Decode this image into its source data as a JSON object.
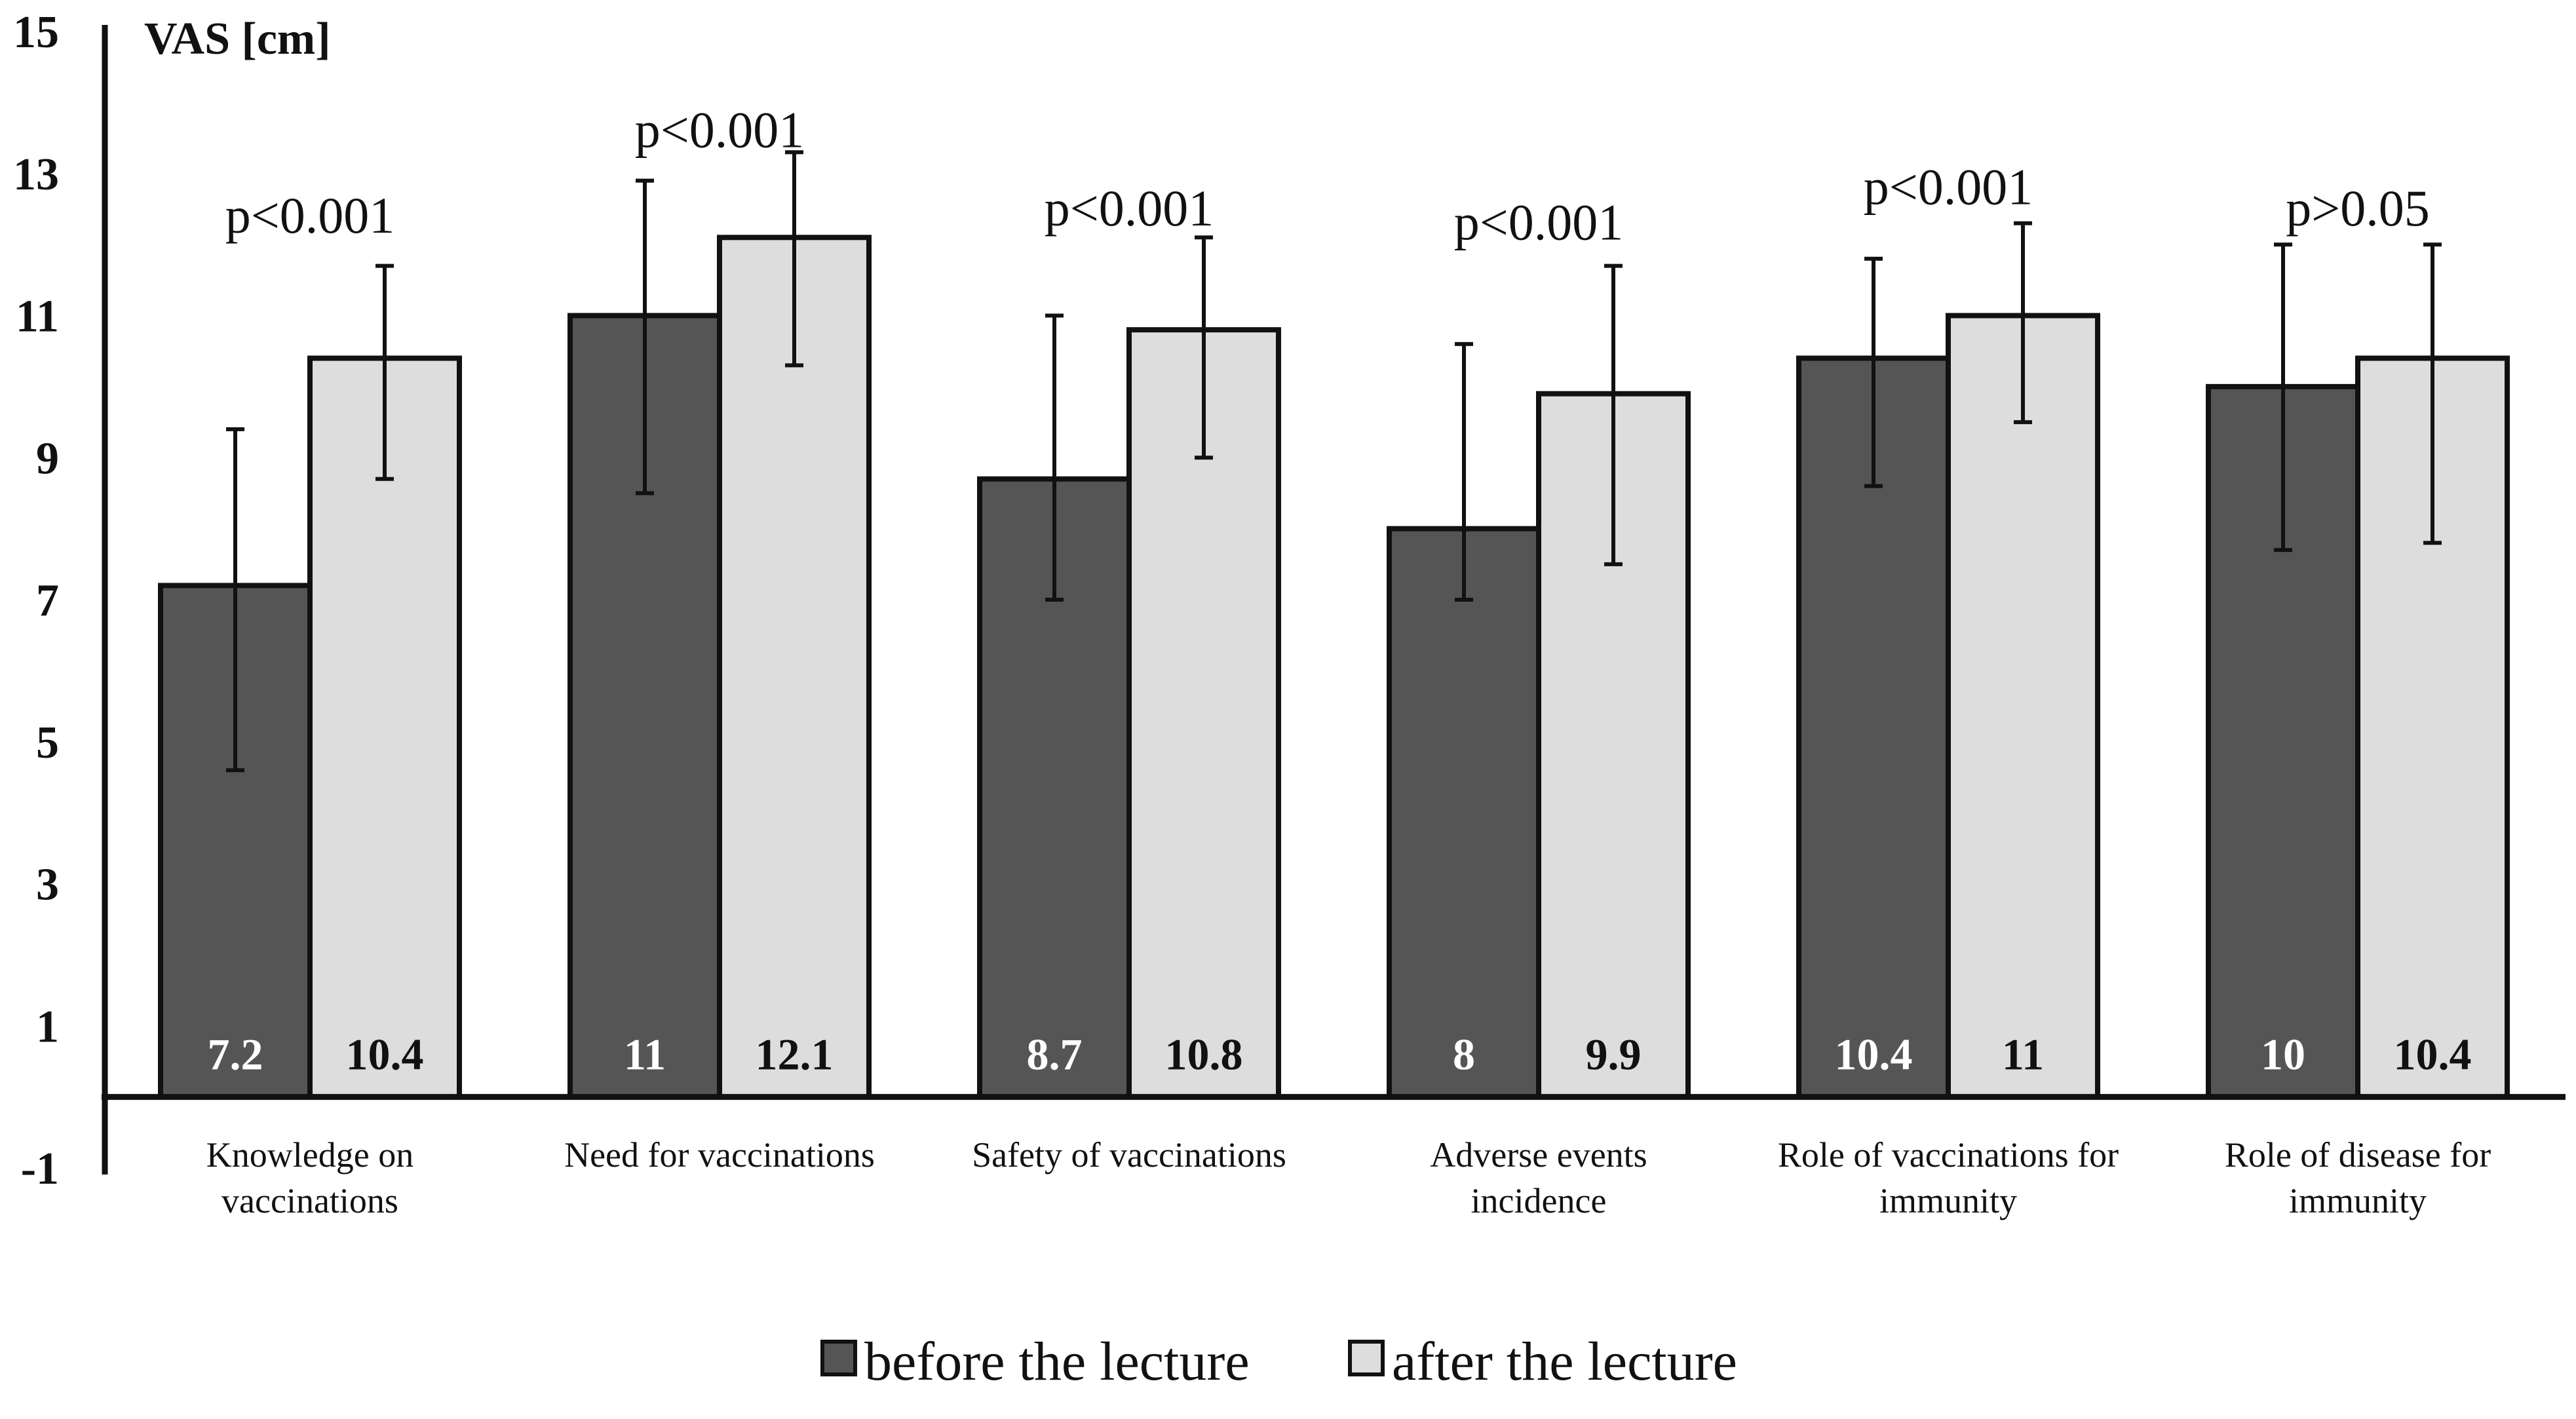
{
  "chart_data": {
    "type": "bar",
    "ylabel": "VAS [cm]",
    "ylim": [
      -1,
      15
    ],
    "yticks": [
      15,
      13,
      11,
      9,
      7,
      5,
      3,
      1,
      -1
    ],
    "categories": [
      [
        "Knowledge on",
        "vaccinations"
      ],
      [
        "Need for vaccinations"
      ],
      [
        "Safety of vaccinations"
      ],
      [
        "Adverse events",
        "incidence"
      ],
      [
        "Role of vaccinations for",
        "immunity"
      ],
      [
        "Role of disease for",
        "immunity"
      ]
    ],
    "series": [
      {
        "name": "before the lecture",
        "color": "#555555",
        "values": [
          7.2,
          11,
          8.7,
          8,
          10.4,
          10
        ],
        "labels": [
          "7.2",
          "11",
          "8.7",
          "8",
          "10.4",
          "10"
        ],
        "error_low": [
          4.6,
          8.5,
          7.0,
          7.0,
          8.6,
          7.7
        ],
        "error_high": [
          9.4,
          12.9,
          11.0,
          10.6,
          11.8,
          12.0
        ]
      },
      {
        "name": "after the lecture",
        "color": "#dddddd",
        "values": [
          10.4,
          12.1,
          10.8,
          9.9,
          11,
          10.4
        ],
        "labels": [
          "10.4",
          "12.1",
          "10.8",
          "9.9",
          "11",
          "10.4"
        ],
        "error_low": [
          8.7,
          10.3,
          9.0,
          7.5,
          9.5,
          7.8
        ],
        "error_high": [
          11.7,
          13.3,
          12.1,
          11.7,
          12.3,
          12.0
        ]
      }
    ],
    "annotations": [
      "p<0.001",
      "p<0.001",
      "p<0.001",
      "p<0.001",
      "p<0.001",
      "p>0.05"
    ],
    "annotation_values": [
      12.4,
      13.6,
      12.5,
      12.3,
      12.8,
      12.5
    ],
    "legend_position": "bottom-center"
  }
}
